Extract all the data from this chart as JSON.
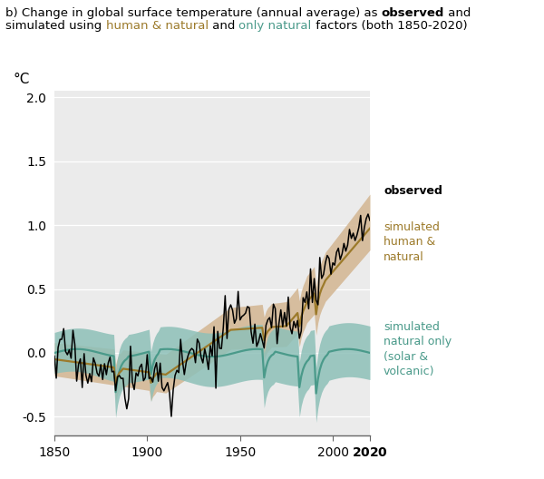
{
  "ylabel": "°C",
  "xlim": [
    1850,
    2020
  ],
  "ylim": [
    -0.65,
    2.05
  ],
  "yticks": [
    -0.5,
    0.0,
    0.5,
    1.0,
    1.5,
    2.0
  ],
  "xticks": [
    1850,
    1900,
    1950,
    2000,
    2020
  ],
  "bg_color": "#ebebeb",
  "human_natural_line_color": "#9c7a2a",
  "human_natural_shade_color": "#d4b896",
  "natural_only_line_color": "#4a9a8a",
  "natural_only_shade_color": "#8dc0b8",
  "observed_color": "#000000",
  "grid_color": "#ffffff",
  "title_color": "#000000",
  "human_natural_label_color": "#9c7a2a",
  "natural_only_label_color": "#4a9a8a"
}
